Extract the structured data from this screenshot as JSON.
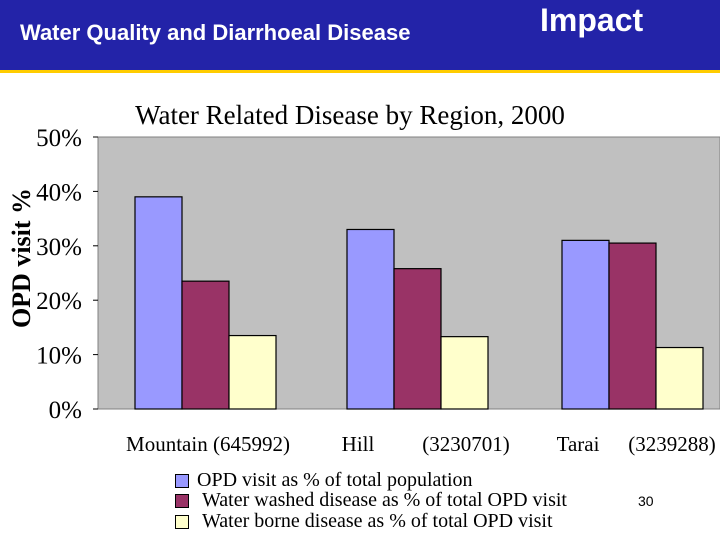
{
  "slide": {
    "title": "Water Quality and Diarrhoeal Disease",
    "title_suffix": "Impact",
    "page_number": "30"
  },
  "colors": {
    "header_bg": "#2323a8",
    "header_rule": "#ffcc00",
    "plot_bg": "#c0c0c0",
    "series": [
      "#9999ff",
      "#993366",
      "#ffffcc"
    ]
  },
  "chart_data": {
    "type": "bar",
    "title": "Water Related Disease by Region, 2000",
    "ylabel": "OPD visit %",
    "xlabel": "",
    "ylim": [
      0,
      50
    ],
    "yticks": [
      "0%",
      "10%",
      "20%",
      "30%",
      "40%",
      "50%"
    ],
    "grid": false,
    "categories": [
      "Mountain",
      "Hill",
      "Tarai"
    ],
    "category_labels": [
      {
        "name": "Mountain",
        "population": "(645992)"
      },
      {
        "name": "Hill",
        "population": "(3230701)"
      },
      {
        "name": "Tarai",
        "population": "(3239288)"
      }
    ],
    "series": [
      {
        "name": "OPD visit as % of total population",
        "values": [
          39,
          33,
          31
        ]
      },
      {
        "name": "Water washed disease as % of total OPD visit",
        "values": [
          23.5,
          25.8,
          30.5
        ]
      },
      {
        "name": "Water borne disease as % of total OPD visit",
        "values": [
          13.5,
          13.3,
          11.3
        ]
      }
    ],
    "legend_position": "bottom"
  }
}
